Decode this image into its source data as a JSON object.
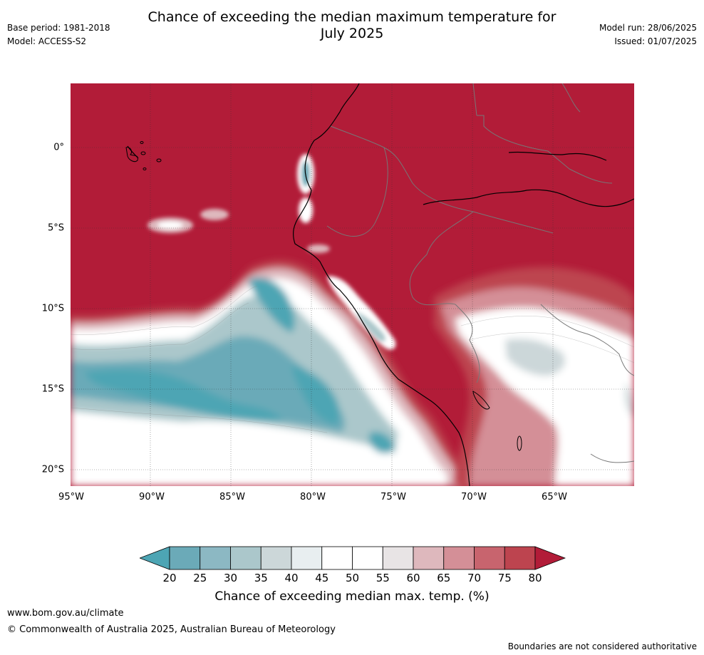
{
  "title_line1": "Chance of exceeding the median maximum temperature for",
  "title_line2": "July 2025",
  "left_meta": {
    "base_period": "Base period: 1981-2018",
    "model": "Model: ACCESS-S2"
  },
  "right_meta": {
    "model_run": "Model run: 28/06/2025",
    "issued": "Issued: 01/07/2025"
  },
  "x_ticks": [
    "95°W",
    "90°W",
    "85°W",
    "80°W",
    "75°W",
    "70°W",
    "65°W"
  ],
  "y_ticks": [
    "0°",
    "5°S",
    "10°S",
    "15°S",
    "20°S"
  ],
  "colorbar": {
    "labels": [
      "20",
      "25",
      "30",
      "35",
      "40",
      "45",
      "50",
      "55",
      "60",
      "65",
      "70",
      "75",
      "80"
    ],
    "colors": [
      "#4da5b4",
      "#6baab8",
      "#8cb8c3",
      "#abc7cb",
      "#ccd7d9",
      "#e8eef0",
      "#ffffff",
      "#ffffff",
      "#e8e4e5",
      "#deb8bd",
      "#d48f97",
      "#c8646e",
      "#bd444f",
      "#b21c38"
    ],
    "title": "Chance of exceeding median max. temp. (%)"
  },
  "footer": {
    "url": "www.bom.gov.au/climate",
    "copyright": "© Commonwealth of Australia 2025, Australian Bureau of Meteorology",
    "disclaimer": "Boundaries are not considered authoritative"
  }
}
